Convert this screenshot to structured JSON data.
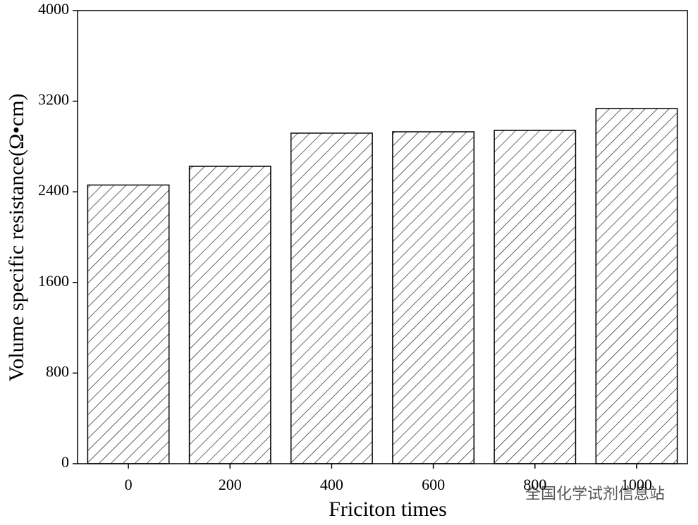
{
  "chart_data": {
    "type": "bar",
    "categories": [
      "0",
      "200",
      "400",
      "600",
      "800",
      "1000"
    ],
    "values": [
      2460,
      2625,
      2918,
      2930,
      2942,
      3135
    ],
    "color": "#000000",
    "x_label": "Friciton times",
    "y_label": "Volume specific resistance(Ω•cm)",
    "ylim": [
      0,
      4000
    ],
    "yticks": [
      0,
      800,
      1600,
      2400,
      3200,
      4000
    ],
    "watermark": "全国化学试剂信息站"
  }
}
